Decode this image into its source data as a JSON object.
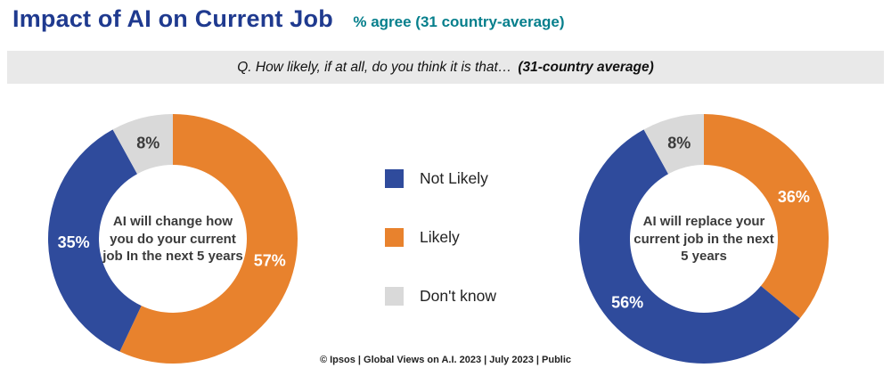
{
  "header": {
    "title": "Impact of AI on Current Job",
    "subtitle": "% agree (31 country-average)"
  },
  "question": {
    "prefix": "Q. How likely, if at all, do you think it is that…",
    "emphasis": "(31-country average)"
  },
  "legend": {
    "items": [
      {
        "label": "Not Likely",
        "color": "#2F4B9C"
      },
      {
        "label": "Likely",
        "color": "#E8822D"
      },
      {
        "label": "Don't know",
        "color": "#D9D9D9"
      }
    ]
  },
  "footer": {
    "text": "© Ipsos | Global Views on A.I. 2023 | July 2023 | Public"
  },
  "chart_data": [
    {
      "type": "pie",
      "subtype": "donut",
      "title": "AI will change how you do your current job In the next 5 years",
      "value_suffix": "%",
      "start_angle_deg": 0,
      "direction": "clockwise",
      "segments": [
        {
          "label": "Likely",
          "value": 57,
          "color": "#E8822D",
          "label_color": "#FFFFFF"
        },
        {
          "label": "Not Likely",
          "value": 35,
          "color": "#2F4B9C",
          "label_color": "#FFFFFF"
        },
        {
          "label": "Don't know",
          "value": 8,
          "color": "#D9D9D9",
          "label_color": "#3B3B3B"
        }
      ]
    },
    {
      "type": "pie",
      "subtype": "donut",
      "title": "AI will replace your current job in the next 5 years",
      "value_suffix": "%",
      "start_angle_deg": 0,
      "direction": "clockwise",
      "segments": [
        {
          "label": "Likely",
          "value": 36,
          "color": "#E8822D",
          "label_color": "#FFFFFF"
        },
        {
          "label": "Not Likely",
          "value": 56,
          "color": "#2F4B9C",
          "label_color": "#FFFFFF"
        },
        {
          "label": "Don't know",
          "value": 8,
          "color": "#D9D9D9",
          "label_color": "#3B3B3B"
        }
      ]
    }
  ]
}
